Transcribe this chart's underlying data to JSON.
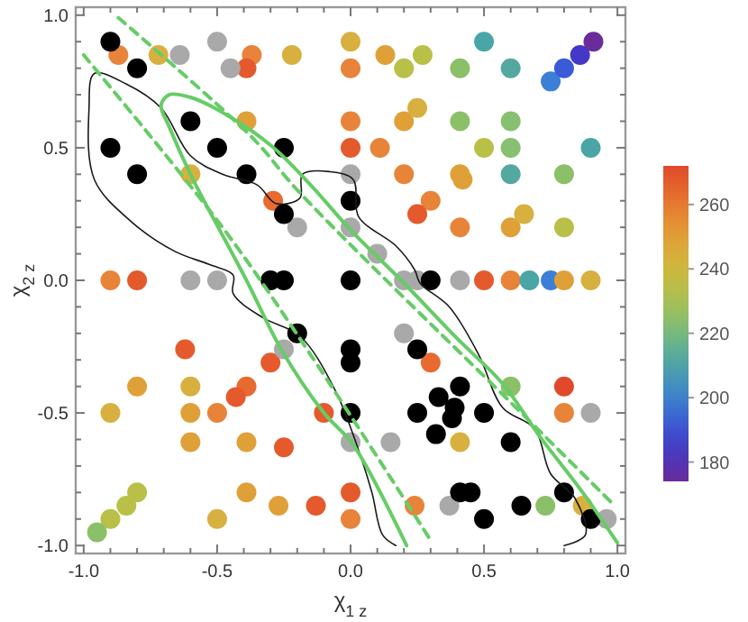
{
  "chart_data": {
    "type": "scatter",
    "xlabel": "χ$_{1 z}$",
    "ylabel": "χ$_{2 z}$",
    "xlim": [
      -1.03,
      1.03
    ],
    "ylim": [
      -1.03,
      1.03
    ],
    "xticks": [
      {
        "value": -1,
        "label": "-1.0"
      },
      {
        "value": -0.9,
        "label": null
      },
      {
        "value": -0.8,
        "label": null
      },
      {
        "value": -0.7,
        "label": null
      },
      {
        "value": -0.6,
        "label": null
      },
      {
        "value": -0.5,
        "label": "-0.5"
      },
      {
        "value": -0.4,
        "label": null
      },
      {
        "value": -0.3,
        "label": null
      },
      {
        "value": -0.2,
        "label": null
      },
      {
        "value": -0.1,
        "label": null
      },
      {
        "value": 0,
        "label": "0.0"
      },
      {
        "value": 0.1,
        "label": null
      },
      {
        "value": 0.2,
        "label": null
      },
      {
        "value": 0.3,
        "label": null
      },
      {
        "value": 0.4,
        "label": null
      },
      {
        "value": 0.5,
        "label": "0.5"
      },
      {
        "value": 0.6,
        "label": null
      },
      {
        "value": 0.7,
        "label": null
      },
      {
        "value": 0.8,
        "label": null
      },
      {
        "value": 0.9,
        "label": null
      },
      {
        "value": 1,
        "label": "1.0"
      }
    ],
    "yticks": [
      {
        "value": -1,
        "label": "-1.0"
      },
      {
        "value": -0.9,
        "label": null
      },
      {
        "value": -0.8,
        "label": null
      },
      {
        "value": -0.7,
        "label": null
      },
      {
        "value": -0.6,
        "label": null
      },
      {
        "value": -0.5,
        "label": "-0.5"
      },
      {
        "value": -0.4,
        "label": null
      },
      {
        "value": -0.3,
        "label": null
      },
      {
        "value": -0.2,
        "label": null
      },
      {
        "value": -0.1,
        "label": null
      },
      {
        "value": 0,
        "label": "0.0"
      },
      {
        "value": 0.1,
        "label": null
      },
      {
        "value": 0.2,
        "label": null
      },
      {
        "value": 0.3,
        "label": null
      },
      {
        "value": 0.4,
        "label": null
      },
      {
        "value": 0.5,
        "label": "0.5"
      },
      {
        "value": 0.6,
        "label": null
      },
      {
        "value": 0.7,
        "label": null
      },
      {
        "value": 0.8,
        "label": null
      },
      {
        "value": 0.9,
        "label": null
      },
      {
        "value": 1,
        "label": "1.0"
      }
    ],
    "clim": [
      174,
      272
    ],
    "cticks": [
      180,
      200,
      220,
      240,
      260
    ],
    "marker": "circle",
    "series": [
      {
        "type": "line",
        "marker": "none",
        "color": "#1a1a1a",
        "line_style": "solid",
        "x": [
          0.17,
          0.12,
          0.08,
          0.03,
          -0.06,
          -0.19,
          -0.33,
          -0.44,
          -0.44,
          -0.53,
          -0.66,
          -0.82,
          -0.96,
          -0.98,
          -0.96,
          -0.84,
          -0.71,
          -0.6,
          -0.48,
          -0.35,
          -0.28,
          -0.19,
          -0.18,
          -0.08,
          0.01,
          0.03,
          0.17,
          0.24,
          0.26,
          0.37,
          0.48,
          0.57,
          0.69,
          0.75,
          0.84,
          0.88,
          0.8
        ],
        "values": [
          -1.0,
          -0.96,
          -0.8,
          -0.64,
          -0.41,
          -0.21,
          -0.14,
          -0.05,
          0.02,
          0.06,
          0.11,
          0.22,
          0.38,
          0.65,
          0.78,
          0.74,
          0.65,
          0.47,
          0.4,
          0.36,
          0.29,
          0.31,
          0.4,
          0.41,
          0.38,
          0.24,
          0.13,
          0.04,
          -0.01,
          -0.1,
          -0.28,
          -0.48,
          -0.56,
          -0.73,
          -0.82,
          -0.96,
          -1.0
        ]
      },
      {
        "type": "line",
        "marker": "none",
        "color": "#66cc66",
        "line_style": "solid",
        "x": [
          0.21,
          0.01,
          -0.1,
          -0.26,
          -0.39,
          -0.6,
          -0.68,
          -0.71,
          -0.68,
          -0.6,
          -0.51,
          -0.3,
          -0.15,
          0.0,
          0.19,
          0.4,
          0.57,
          0.71,
          0.87,
          1.0
        ],
        "values": [
          -1.0,
          -0.62,
          -0.5,
          -0.26,
          0.0,
          0.4,
          0.58,
          0.66,
          0.7,
          0.69,
          0.65,
          0.51,
          0.36,
          0.19,
          0.0,
          -0.22,
          -0.39,
          -0.59,
          -0.8,
          -0.99
        ]
      },
      {
        "type": "line",
        "marker": "none",
        "color": "#66cc66",
        "line_style": "dashed",
        "x": [
          -0.87,
          -0.37,
          -0.19,
          0.64,
          0.93,
          0.98
        ],
        "values": [
          0.99,
          0.54,
          0.33,
          -0.5,
          -0.79,
          -0.84
        ]
      },
      {
        "type": "line",
        "marker": "none",
        "color": "#66cc66",
        "line_style": "dashed",
        "x": [
          -1.0,
          -0.48,
          -0.15,
          0.3
        ],
        "values": [
          0.85,
          0.2,
          -0.28,
          -0.98
        ]
      },
      {
        "x": [
          -0.87,
          -0.72,
          -0.37,
          -0.39,
          -0.22,
          0.0,
          0.0,
          -0.39,
          0.0,
          0.0,
          -0.6,
          -0.29,
          -0.9,
          -0.8,
          0.13,
          0.2,
          0.27,
          0.41,
          0.5,
          0.6,
          0.75,
          0.8,
          0.86,
          0.91,
          0.2,
          0.25,
          0.41,
          0.6,
          0.11,
          0.5,
          0.6,
          0.9,
          0.2,
          0.41,
          0.42,
          0.6,
          0.8,
          0.3,
          0.25,
          0.41,
          0.6,
          0.65,
          0.8,
          0.5,
          0.6,
          0.67,
          0.75,
          0.8,
          0.9,
          -0.62,
          -0.3,
          -0.8,
          -0.6,
          -0.39,
          -0.43,
          -0.9,
          -0.6,
          -0.5,
          -0.1,
          -0.6,
          -0.39,
          -0.25,
          -0.8,
          -0.84,
          -0.9,
          -0.95,
          -0.39,
          -0.27,
          -0.5,
          -0.13,
          0.0,
          0.0,
          0.3,
          0.41,
          0.6,
          0.8,
          0.8,
          0.24,
          0.73,
          0.87
        ],
        "values": [
          0.85,
          0.85,
          0.85,
          0.8,
          0.85,
          0.9,
          0.8,
          0.6,
          0.6,
          0.5,
          0.4,
          0.3,
          0.0,
          0.0,
          0.85,
          0.8,
          0.85,
          0.8,
          0.9,
          0.8,
          0.75,
          0.8,
          0.85,
          0.9,
          0.6,
          0.65,
          0.6,
          0.6,
          0.5,
          0.5,
          0.5,
          0.5,
          0.4,
          0.4,
          0.38,
          0.4,
          0.4,
          0.3,
          0.25,
          0.2,
          0.2,
          0.25,
          0.2,
          0.0,
          0.0,
          0.0,
          0.0,
          0.0,
          0.0,
          -0.26,
          -0.31,
          -0.4,
          -0.4,
          -0.4,
          -0.44,
          -0.5,
          -0.5,
          -0.5,
          -0.5,
          -0.61,
          -0.61,
          -0.63,
          -0.8,
          -0.85,
          -0.9,
          -0.95,
          -0.8,
          -0.85,
          -0.9,
          -0.85,
          -0.8,
          -0.9,
          -0.31,
          -0.61,
          -0.4,
          -0.4,
          -0.5,
          -0.85,
          -0.85,
          -0.85
        ],
        "colors": [
          "#e8843a",
          "#d8b040",
          "#e8843a",
          "#e45a2c",
          "#d8b040",
          "#d8b040",
          "#e8843a",
          "#e0a038",
          "#e8843a",
          "#e45a2c",
          "#d8b040",
          "#e86a30",
          "#e8843a",
          "#e45a2c",
          "#e0a038",
          "#b8c048",
          "#b8c048",
          "#8cc068",
          "#4aa6a6",
          "#55a8a0",
          "#3c7fd6",
          "#3a5ad8",
          "#4438c8",
          "#6a2c9a",
          "#e0a038",
          "#d8b040",
          "#8cc068",
          "#86c070",
          "#e8843a",
          "#b8c048",
          "#86c070",
          "#4aa6a6",
          "#e8843a",
          "#e0a038",
          "#e0a038",
          "#55a8a0",
          "#8cc068",
          "#e8843a",
          "#e45a2c",
          "#e8843a",
          "#e0a038",
          "#d8b040",
          "#b8c048",
          "#e45a2c",
          "#e8843a",
          "#4aa6a6",
          "#3c7fd6",
          "#e0a038",
          "#d8b040",
          "#e45a2c",
          "#e45a2c",
          "#e0a038",
          "#d8b040",
          "#e86a30",
          "#e45a2c",
          "#d8b040",
          "#e0a038",
          "#e8843a",
          "#e45a2c",
          "#e0a038",
          "#e0a038",
          "#e45a2c",
          "#b8c048",
          "#b8c048",
          "#b8c048",
          "#8cc068",
          "#e0a038",
          "#e0a038",
          "#d8b040",
          "#e45a2c",
          "#e45a2c",
          "#e8843a",
          "#e86a30",
          "#d8b040",
          "#8cc068",
          "#e04a2a",
          "#e8843a",
          "#e8843a",
          "#8cc068",
          "#d8b040"
        ]
      },
      {
        "color": "#a9a9a9",
        "x": [
          -0.64,
          -0.5,
          -0.45,
          0.0,
          -0.2,
          0.0,
          -0.6,
          -0.5,
          0.1,
          0.2,
          0.25,
          0.41,
          -0.25,
          0.2,
          0.0,
          0.15,
          0.9,
          0.37,
          0.96
        ],
        "values": [
          0.85,
          0.9,
          0.8,
          0.4,
          0.2,
          0.2,
          0.0,
          0.0,
          0.1,
          0.0,
          0.0,
          0.0,
          -0.26,
          -0.2,
          -0.61,
          -0.61,
          -0.5,
          -0.85,
          -0.9
        ]
      },
      {
        "color": "#000000",
        "x": [
          -0.9,
          -0.8,
          -0.6,
          -0.9,
          -0.5,
          -0.25,
          -0.8,
          -0.39,
          -0.25,
          0.0,
          -0.3,
          -0.25,
          0.0,
          0.3,
          -0.2,
          0.0,
          0.0,
          0.0,
          0.25,
          0.41,
          0.33,
          0.39,
          0.38,
          0.25,
          0.5,
          0.32,
          0.6,
          0.41,
          0.45,
          0.5,
          0.64,
          0.8,
          0.9
        ],
        "values": [
          0.9,
          0.8,
          0.6,
          0.5,
          0.5,
          0.5,
          0.4,
          0.4,
          0.25,
          0.3,
          0.0,
          0.0,
          0.0,
          0.0,
          -0.2,
          -0.26,
          -0.31,
          -0.5,
          -0.26,
          -0.4,
          -0.44,
          -0.48,
          -0.52,
          -0.5,
          -0.5,
          -0.58,
          -0.61,
          -0.8,
          -0.8,
          -0.9,
          -0.85,
          -0.8,
          -0.9
        ]
      }
    ]
  }
}
